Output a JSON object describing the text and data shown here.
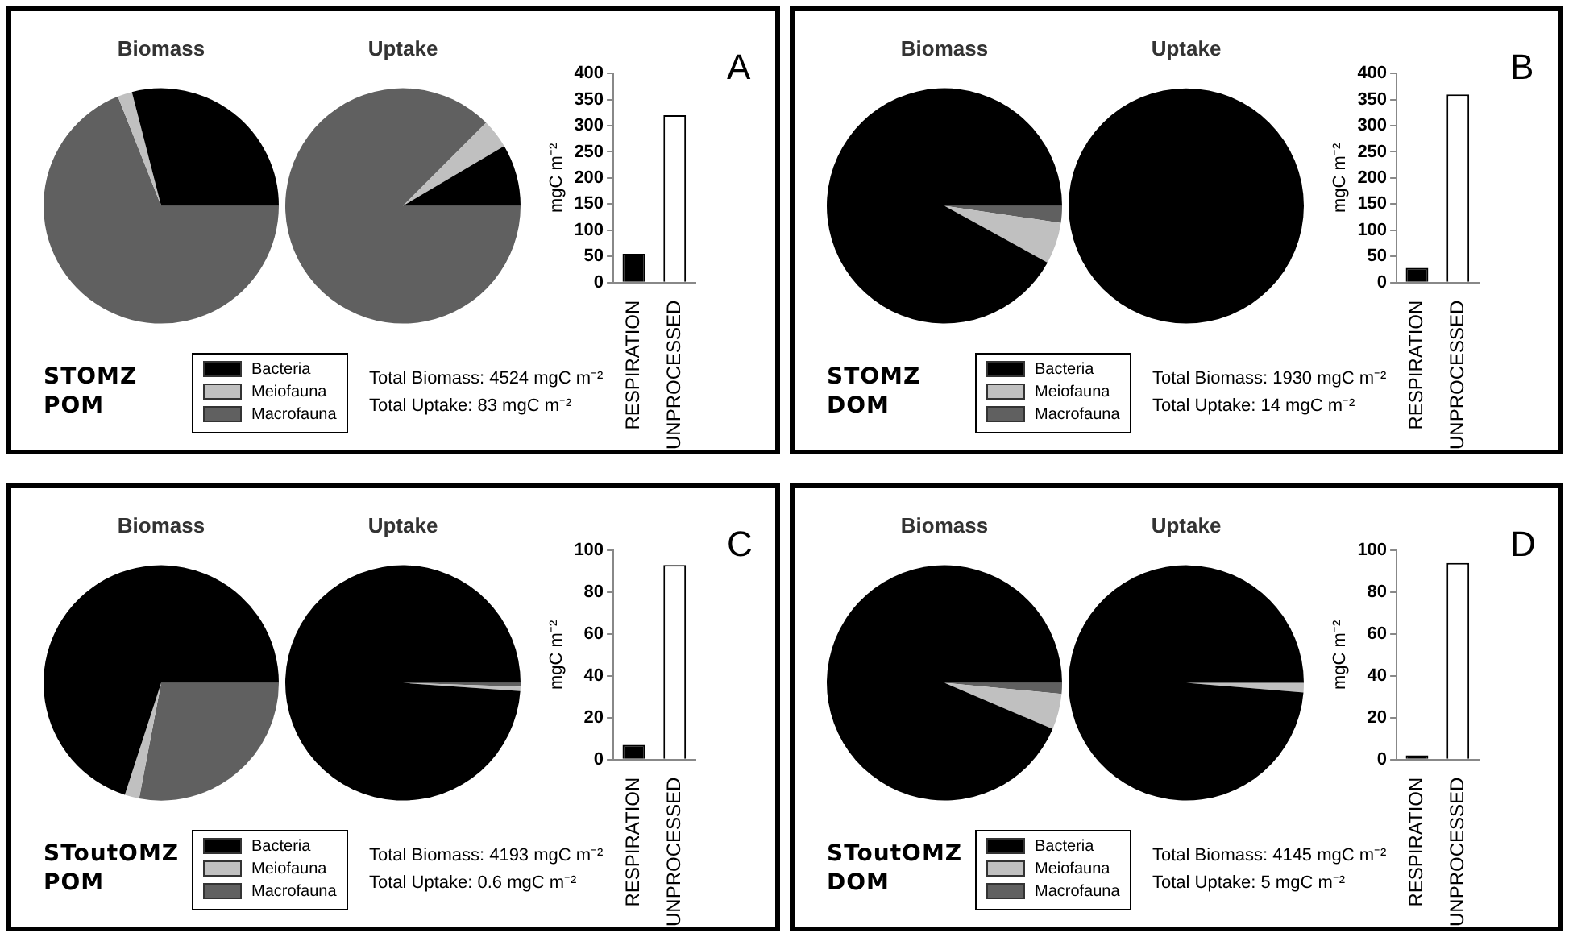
{
  "chart_data": [
    {
      "type": "pie",
      "categories": [
        "Bacteria",
        "Meiofauna",
        "Macrofauna"
      ],
      "colors": [
        "#000000",
        "#c0c0c0",
        "#606060"
      ],
      "legend": "bottom",
      "annotations": [
        "STOMZ",
        "POM",
        "Total Biomass: 4524 mgC m⁻²",
        "Total Uptake: 83 mgC m⁻²"
      ],
      "series": [
        {
          "name": "Biomass",
          "values": [
            29,
            2,
            69
          ]
        },
        {
          "name": "Uptake",
          "values": [
            8.5,
            4,
            87.5
          ]
        }
      ]
    },
    {
      "type": "bar",
      "categories": [
        "RESPIRATION",
        "UNPROCESSED"
      ],
      "values": [
        55,
        320
      ],
      "colors": [
        "#000000",
        "#ffffff"
      ],
      "ylabel": "mgC m⁻²",
      "ylim": [
        0,
        400
      ],
      "yticks": [
        0,
        50,
        100,
        150,
        200,
        250,
        300,
        350,
        400
      ],
      "annotations": [
        "A"
      ]
    },
    {
      "type": "pie",
      "categories": [
        "Bacteria",
        "Meiofauna",
        "Macrofauna"
      ],
      "colors": [
        "#000000",
        "#c0c0c0",
        "#606060"
      ],
      "legend": "bottom",
      "annotations": [
        "STOMZ",
        "DOM",
        "Total Biomass: 1930 mgC m⁻²",
        "Total Uptake: 14 mgC m⁻²"
      ],
      "series": [
        {
          "name": "Biomass",
          "values": [
            92,
            5.7,
            2.3
          ]
        },
        {
          "name": "Uptake",
          "values": [
            100,
            0,
            0
          ]
        }
      ]
    },
    {
      "type": "bar",
      "categories": [
        "RESPIRATION",
        "UNPROCESSED"
      ],
      "values": [
        28,
        360
      ],
      "colors": [
        "#000000",
        "#ffffff"
      ],
      "ylabel": "mgC m⁻²",
      "ylim": [
        0,
        400
      ],
      "yticks": [
        0,
        50,
        100,
        150,
        200,
        250,
        300,
        350,
        400
      ],
      "annotations": [
        "B"
      ]
    },
    {
      "type": "pie",
      "categories": [
        "Bacteria",
        "Meiofauna",
        "Macrofauna"
      ],
      "colors": [
        "#000000",
        "#c0c0c0",
        "#606060"
      ],
      "legend": "bottom",
      "annotations": [
        "SToutOMZ",
        "POM",
        "Total Biomass: 4193 mgC m⁻²",
        "Total Uptake: 0.6 mgC m⁻²"
      ],
      "series": [
        {
          "name": "Biomass",
          "values": [
            70,
            2,
            28
          ]
        },
        {
          "name": "Uptake",
          "values": [
            98.9,
            0.6,
            0.5
          ]
        }
      ]
    },
    {
      "type": "bar",
      "categories": [
        "RESPIRATION",
        "UNPROCESSED"
      ],
      "values": [
        7,
        93
      ],
      "colors": [
        "#000000",
        "#ffffff"
      ],
      "ylabel": "mgC m⁻²",
      "ylim": [
        0,
        100
      ],
      "yticks": [
        0,
        20,
        40,
        60,
        80,
        100
      ],
      "annotations": [
        "C"
      ]
    },
    {
      "type": "pie",
      "categories": [
        "Bacteria",
        "Meiofauna",
        "Macrofauna"
      ],
      "colors": [
        "#000000",
        "#c0c0c0",
        "#606060"
      ],
      "legend": "bottom",
      "annotations": [
        "SToutOMZ",
        "DOM",
        "Total Biomass: 4145 mgC m⁻²",
        "Total Uptake: 5 mgC m⁻²"
      ],
      "series": [
        {
          "name": "Biomass",
          "values": [
            93.6,
            4.9,
            1.5
          ]
        },
        {
          "name": "Uptake",
          "values": [
            98.7,
            1.3,
            0
          ]
        }
      ]
    },
    {
      "type": "bar",
      "categories": [
        "RESPIRATION",
        "UNPROCESSED"
      ],
      "values": [
        2,
        94
      ],
      "colors": [
        "#000000",
        "#ffffff"
      ],
      "ylabel": "mgC m⁻²",
      "ylim": [
        0,
        100
      ],
      "yticks": [
        0,
        20,
        40,
        60,
        80,
        100
      ],
      "annotations": [
        "D"
      ]
    }
  ]
}
